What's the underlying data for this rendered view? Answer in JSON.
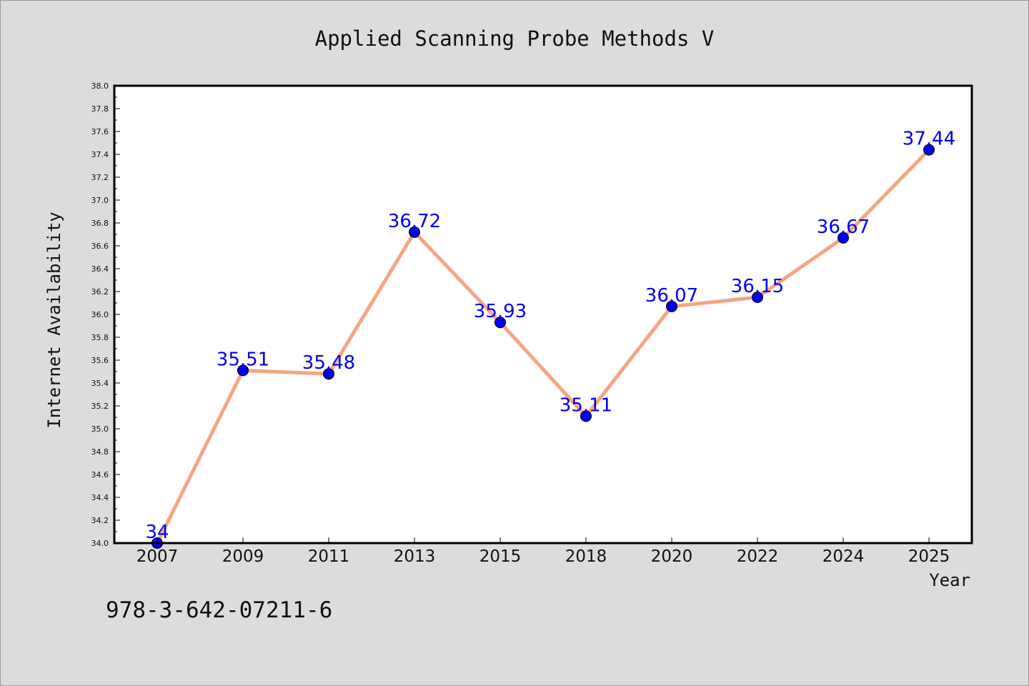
{
  "chart_data": {
    "type": "line",
    "title": "Applied Scanning Probe Methods V",
    "xlabel": "Year",
    "ylabel": "Internet Availability",
    "categories": [
      "2007",
      "2009",
      "2011",
      "2013",
      "2015",
      "2018",
      "2020",
      "2022",
      "2024",
      "2025"
    ],
    "series": [
      {
        "values": [
          34,
          35.51,
          35.48,
          36.72,
          35.93,
          35.11,
          36.07,
          36.15,
          36.67,
          37.44
        ],
        "data_labels": [
          "34",
          "35.51",
          "35.48",
          "36.72",
          "35.93",
          "35.11",
          "36.07",
          "36.15",
          "36.67",
          "37.44"
        ]
      }
    ],
    "ylim": [
      34.0,
      38.0
    ],
    "yticks": [
      "34.0",
      "34.2",
      "34.4",
      "34.6",
      "34.8",
      "35.0",
      "35.2",
      "35.4",
      "35.6",
      "35.8",
      "36.0",
      "36.2",
      "36.4",
      "36.6",
      "36.8",
      "37.0",
      "37.2",
      "37.4",
      "37.6",
      "37.8",
      "38.0"
    ],
    "grid": false,
    "legend": "none",
    "colors": {
      "line": "#f4a582",
      "marker": "#0000ee",
      "label": "#0000ee",
      "plot_background": "#ffffff",
      "figure_background": "#dcdcdc"
    }
  },
  "footer": {
    "isbn": "978-3-642-07211-6"
  }
}
